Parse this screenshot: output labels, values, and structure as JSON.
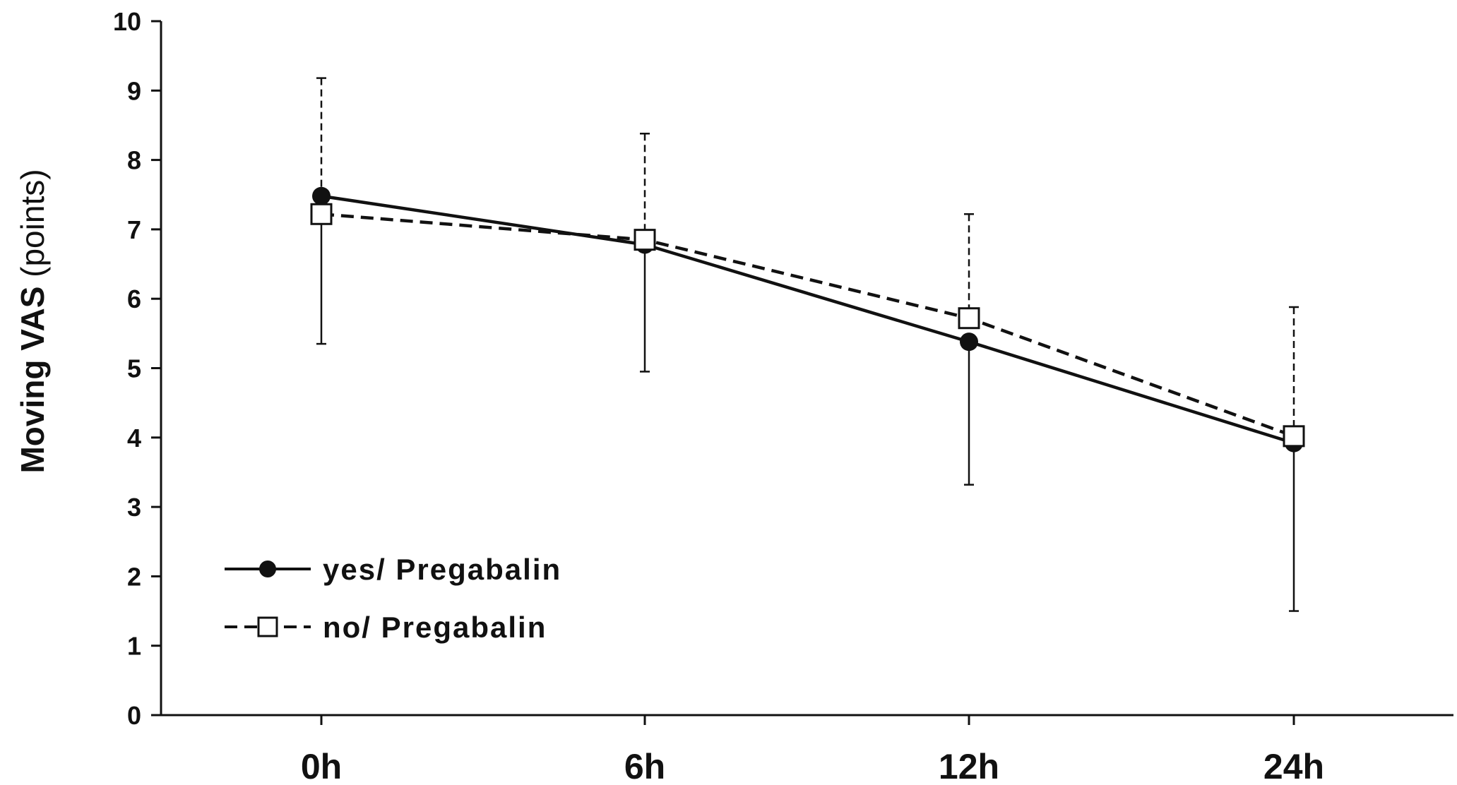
{
  "chart_data": {
    "type": "line",
    "categories": [
      "0h",
      "6h",
      "12h",
      "24h"
    ],
    "ylabel_bold": "Moving VAS",
    "ylabel_rest": " (points)",
    "ylim": [
      0,
      10
    ],
    "yticks": [
      "0",
      "1",
      "2",
      "3",
      "4",
      "5",
      "6",
      "7",
      "8",
      "9",
      "10"
    ],
    "grid": false,
    "legend_position": "bottom-left",
    "series": [
      {
        "name": "yes/ Pregabalin",
        "values": [
          7.48,
          6.78,
          5.38,
          3.92
        ],
        "error_upper": [
          7.48,
          6.78,
          5.38,
          3.92
        ],
        "error_lower": [
          5.35,
          4.95,
          3.32,
          1.5
        ],
        "line_style": "solid",
        "marker": "filled-circle",
        "color": "#111111"
      },
      {
        "name": "no/ Pregabalin",
        "legend_label": "no/ Pregabalin",
        "values": [
          7.22,
          6.85,
          5.72,
          4.02
        ],
        "error_upper": [
          9.18,
          8.38,
          7.22,
          5.88
        ],
        "error_lower": [
          7.22,
          6.85,
          5.72,
          4.02
        ],
        "line_style": "dashed",
        "marker": "open-square",
        "color": "#111111"
      }
    ]
  }
}
